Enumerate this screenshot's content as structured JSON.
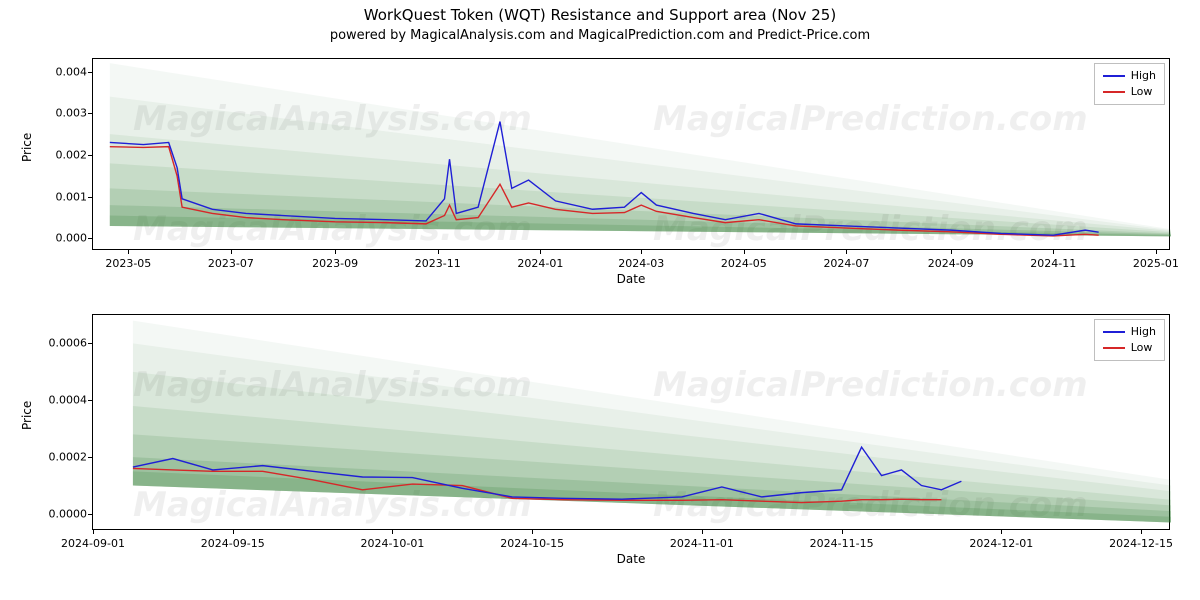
{
  "title": "WorkQuest Token (WQT) Resistance and Support area (Nov 25)",
  "subtitle": "powered by MagicalAnalysis.com and MagicalPrediction.com and Predict-Price.com",
  "watermarks": [
    "MagicalAnalysis.com",
    "MagicalPrediction.com"
  ],
  "colors": {
    "high": "#1f1fd6",
    "low": "#d62728",
    "fan_base": "#2e7d32",
    "axis": "#000000",
    "legend_border": "#bfbfbf",
    "background": "#ffffff"
  },
  "legend": {
    "high": "High",
    "low": "Low"
  },
  "typography": {
    "title_fontsize": 15,
    "subtitle_fontsize": 13,
    "label_fontsize": 12,
    "tick_fontsize": 11
  },
  "panel1": {
    "type": "line",
    "ylabel": "Price",
    "xlabel": "Date",
    "ylim": [
      -0.0003,
      0.0043
    ],
    "yticks": [
      0.0,
      0.001,
      0.002,
      0.003,
      0.004
    ],
    "ytick_labels": [
      "0.000",
      "0.001",
      "0.002",
      "0.003",
      "0.004"
    ],
    "x_range": [
      "2023-04-10",
      "2025-01-10"
    ],
    "xticks": [
      "2023-05",
      "2023-07",
      "2023-09",
      "2023-11",
      "2024-01",
      "2024-03",
      "2024-05",
      "2024-07",
      "2024-09",
      "2024-11",
      "2025-01"
    ],
    "fan": {
      "apex_x": "2023-04-20",
      "start_y": [
        0.0003,
        0.00055,
        0.0008,
        0.0012,
        0.0018,
        0.0025,
        0.0034,
        0.0042
      ],
      "end_x": "2025-01-10",
      "end_y": [
        5e-05,
        8e-05,
        0.0001,
        0.00012,
        0.00015,
        0.00018,
        0.0002,
        0.00022
      ],
      "alpha_layers": [
        0.22,
        0.19,
        0.16,
        0.13,
        0.1,
        0.08,
        0.06,
        0.05
      ]
    },
    "series_high": [
      [
        "2023-04-20",
        0.0023
      ],
      [
        "2023-05-10",
        0.00225
      ],
      [
        "2023-05-25",
        0.0023
      ],
      [
        "2023-05-30",
        0.0017
      ],
      [
        "2023-06-02",
        0.00095
      ],
      [
        "2023-06-20",
        0.0007
      ],
      [
        "2023-07-10",
        0.0006
      ],
      [
        "2023-08-01",
        0.00055
      ],
      [
        "2023-09-01",
        0.00048
      ],
      [
        "2023-10-01",
        0.00045
      ],
      [
        "2023-10-25",
        0.00042
      ],
      [
        "2023-11-05",
        0.00095
      ],
      [
        "2023-11-08",
        0.0019
      ],
      [
        "2023-11-12",
        0.0006
      ],
      [
        "2023-11-25",
        0.00075
      ],
      [
        "2023-12-08",
        0.0028
      ],
      [
        "2023-12-15",
        0.0012
      ],
      [
        "2023-12-25",
        0.0014
      ],
      [
        "2024-01-10",
        0.0009
      ],
      [
        "2024-02-01",
        0.0007
      ],
      [
        "2024-02-20",
        0.00075
      ],
      [
        "2024-03-01",
        0.0011
      ],
      [
        "2024-03-10",
        0.0008
      ],
      [
        "2024-04-01",
        0.0006
      ],
      [
        "2024-04-20",
        0.00045
      ],
      [
        "2024-05-10",
        0.0006
      ],
      [
        "2024-06-01",
        0.00035
      ],
      [
        "2024-07-01",
        0.0003
      ],
      [
        "2024-08-01",
        0.00025
      ],
      [
        "2024-09-01",
        0.0002
      ],
      [
        "2024-10-01",
        0.00012
      ],
      [
        "2024-11-01",
        8e-05
      ],
      [
        "2024-11-20",
        0.0002
      ],
      [
        "2024-11-28",
        0.00015
      ]
    ],
    "series_low": [
      [
        "2023-04-20",
        0.0022
      ],
      [
        "2023-05-10",
        0.00218
      ],
      [
        "2023-05-25",
        0.0022
      ],
      [
        "2023-05-30",
        0.0015
      ],
      [
        "2023-06-02",
        0.00075
      ],
      [
        "2023-06-20",
        0.0006
      ],
      [
        "2023-07-10",
        0.0005
      ],
      [
        "2023-08-01",
        0.00045
      ],
      [
        "2023-09-01",
        0.0004
      ],
      [
        "2023-10-01",
        0.00038
      ],
      [
        "2023-10-25",
        0.00035
      ],
      [
        "2023-11-05",
        0.00055
      ],
      [
        "2023-11-08",
        0.0008
      ],
      [
        "2023-11-12",
        0.00045
      ],
      [
        "2023-11-25",
        0.0005
      ],
      [
        "2023-12-08",
        0.0013
      ],
      [
        "2023-12-15",
        0.00075
      ],
      [
        "2023-12-25",
        0.00085
      ],
      [
        "2024-01-10",
        0.0007
      ],
      [
        "2024-02-01",
        0.0006
      ],
      [
        "2024-02-20",
        0.00062
      ],
      [
        "2024-03-01",
        0.0008
      ],
      [
        "2024-03-10",
        0.00065
      ],
      [
        "2024-04-01",
        0.0005
      ],
      [
        "2024-04-20",
        0.00038
      ],
      [
        "2024-05-10",
        0.00045
      ],
      [
        "2024-06-01",
        0.0003
      ],
      [
        "2024-07-01",
        0.00025
      ],
      [
        "2024-08-01",
        0.0002
      ],
      [
        "2024-09-01",
        0.00016
      ],
      [
        "2024-10-01",
        0.0001
      ],
      [
        "2024-11-01",
        6e-05
      ],
      [
        "2024-11-20",
        0.0001
      ],
      [
        "2024-11-28",
        8e-05
      ]
    ]
  },
  "panel2": {
    "type": "line",
    "ylabel": "Price",
    "xlabel": "Date",
    "ylim": [
      -6e-05,
      0.0007
    ],
    "yticks": [
      0.0,
      0.0002,
      0.0004,
      0.0006
    ],
    "ytick_labels": [
      "0.0000",
      "0.0002",
      "0.0004",
      "0.0006"
    ],
    "x_range": [
      "2024-09-01",
      "2024-12-18"
    ],
    "xticks": [
      "2024-09-01",
      "2024-09-15",
      "2024-10-01",
      "2024-10-15",
      "2024-11-01",
      "2024-11-15",
      "2024-12-01",
      "2024-12-15"
    ],
    "fan": {
      "apex_x": "2024-09-05",
      "start_y": [
        0.0001,
        0.00015,
        0.0002,
        0.00028,
        0.00038,
        0.0005,
        0.0006,
        0.00068
      ],
      "end_x": "2024-12-18",
      "end_y": [
        -3e-05,
        -1e-05,
        1e-05,
        3e-05,
        5e-05,
        8e-05,
        0.0001,
        0.00012
      ],
      "alpha_layers": [
        0.22,
        0.19,
        0.16,
        0.13,
        0.1,
        0.08,
        0.06,
        0.05
      ]
    },
    "series_high": [
      [
        "2024-09-05",
        0.000165
      ],
      [
        "2024-09-09",
        0.000195
      ],
      [
        "2024-09-13",
        0.000155
      ],
      [
        "2024-09-18",
        0.00017
      ],
      [
        "2024-09-23",
        0.00015
      ],
      [
        "2024-09-28",
        0.00013
      ],
      [
        "2024-10-03",
        0.000128
      ],
      [
        "2024-10-08",
        9e-05
      ],
      [
        "2024-10-13",
        6e-05
      ],
      [
        "2024-10-18",
        5.5e-05
      ],
      [
        "2024-10-24",
        5.2e-05
      ],
      [
        "2024-10-30",
        6e-05
      ],
      [
        "2024-11-03",
        9.5e-05
      ],
      [
        "2024-11-07",
        6e-05
      ],
      [
        "2024-11-11",
        7.5e-05
      ],
      [
        "2024-11-15",
        8.5e-05
      ],
      [
        "2024-11-17",
        0.000235
      ],
      [
        "2024-11-19",
        0.000135
      ],
      [
        "2024-11-21",
        0.000155
      ],
      [
        "2024-11-23",
        0.0001
      ],
      [
        "2024-11-25",
        8.5e-05
      ],
      [
        "2024-11-27",
        0.000115
      ]
    ],
    "series_low": [
      [
        "2024-09-05",
        0.00016
      ],
      [
        "2024-09-09",
        0.000155
      ],
      [
        "2024-09-13",
        0.00015
      ],
      [
        "2024-09-18",
        0.00015
      ],
      [
        "2024-09-23",
        0.00012
      ],
      [
        "2024-09-28",
        8.5e-05
      ],
      [
        "2024-10-03",
        0.000105
      ],
      [
        "2024-10-08",
        0.0001
      ],
      [
        "2024-10-13",
        5.5e-05
      ],
      [
        "2024-10-18",
        5e-05
      ],
      [
        "2024-10-24",
        4.8e-05
      ],
      [
        "2024-10-30",
        4.8e-05
      ],
      [
        "2024-11-03",
        5e-05
      ],
      [
        "2024-11-07",
        4.5e-05
      ],
      [
        "2024-11-11",
        4e-05
      ],
      [
        "2024-11-15",
        4.5e-05
      ],
      [
        "2024-11-17",
        5e-05
      ],
      [
        "2024-11-19",
        5e-05
      ],
      [
        "2024-11-21",
        5.2e-05
      ],
      [
        "2024-11-23",
        5e-05
      ],
      [
        "2024-11-25",
        5e-05
      ]
    ]
  }
}
